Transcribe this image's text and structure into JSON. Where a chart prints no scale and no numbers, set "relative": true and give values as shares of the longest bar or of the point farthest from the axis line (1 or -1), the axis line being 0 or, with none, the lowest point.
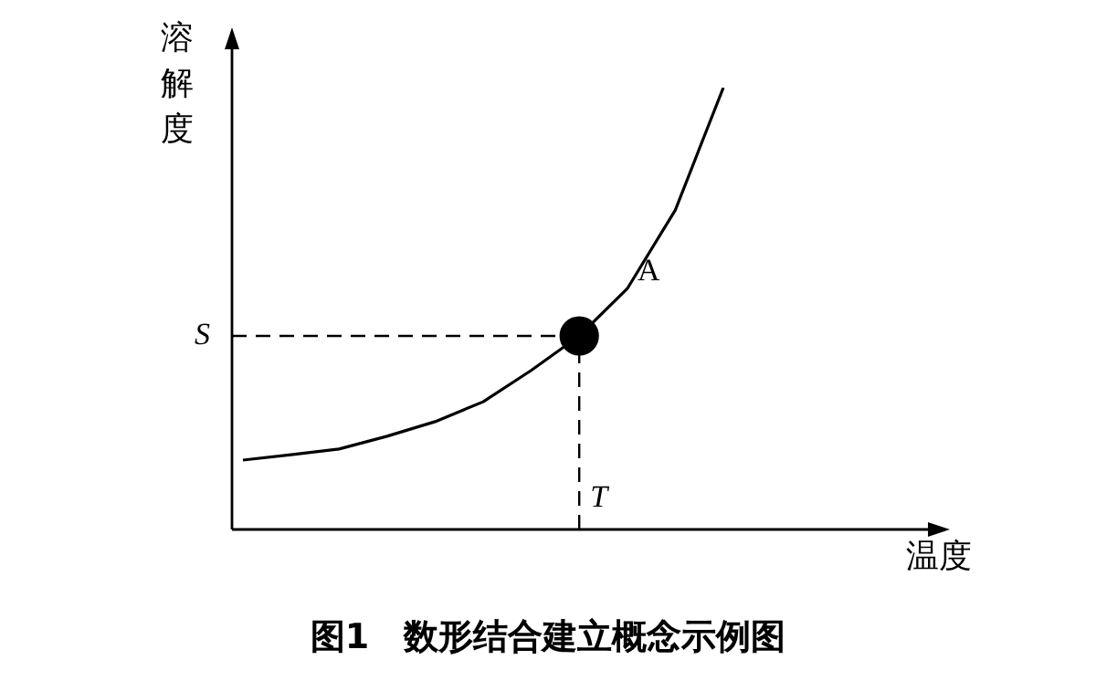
{
  "chart_data": {
    "type": "line",
    "relative": true,
    "title": "图1　数形结合建立概念示例图",
    "ylabel": "溶解度",
    "xlabel": "温度",
    "categories": [
      null,
      null,
      null,
      null,
      null,
      null,
      null,
      null,
      null,
      null,
      null
    ],
    "series": [
      {
        "color": "#000000",
        "values": [
          0.157,
          0.169,
          0.182,
          0.211,
          0.244,
          0.289,
          0.36,
          0.438,
          0.545,
          0.723,
          1
        ]
      }
    ],
    "ref_lines": [
      {
        "axis": "y",
        "value": 0.438,
        "label": "S",
        "line_style": "dashed"
      }
    ],
    "annotations": [
      "A",
      "T"
    ]
  }
}
